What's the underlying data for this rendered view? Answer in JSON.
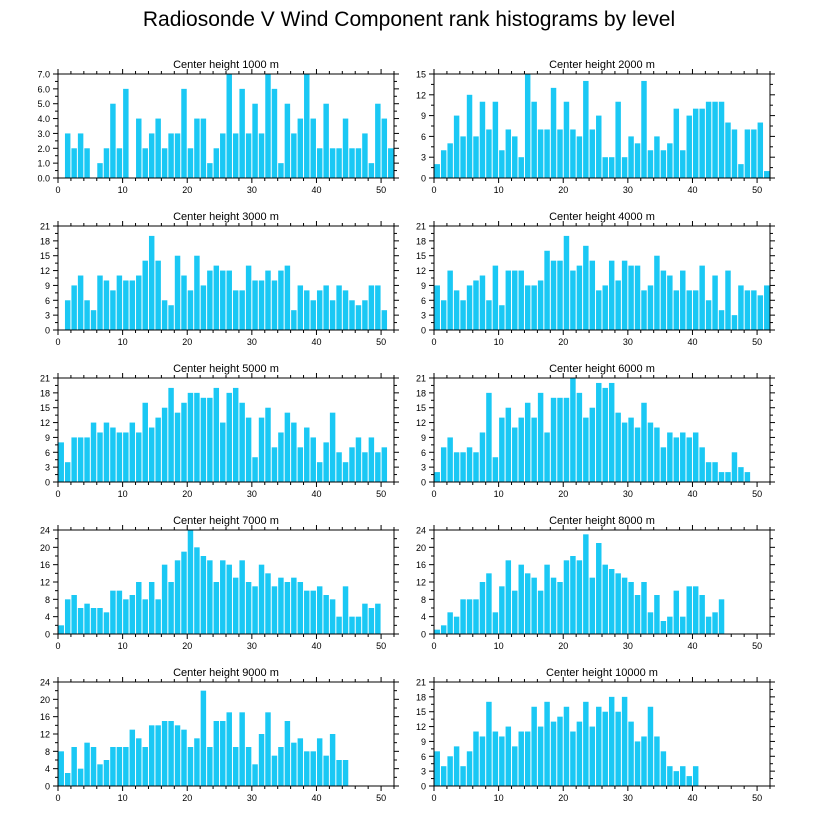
{
  "figure_title": "Radiosonde V Wind Component rank histograms by level",
  "colors": {
    "bar": "#1ac8f4",
    "bar_edge": "#ffffff",
    "axis": "#000000",
    "background": "#ffffff"
  },
  "chart_data": [
    {
      "type": "bar",
      "title": "Center height 1000 m",
      "categories": [
        0,
        1,
        2,
        3,
        4,
        5,
        6,
        7,
        8,
        9,
        10,
        11,
        12,
        13,
        14,
        15,
        16,
        17,
        18,
        19,
        20,
        21,
        22,
        23,
        24,
        25,
        26,
        27,
        28,
        29,
        30,
        31,
        32,
        33,
        34,
        35,
        36,
        37,
        38,
        39,
        40,
        41,
        42,
        43,
        44,
        45,
        46,
        47,
        48,
        49,
        50,
        51
      ],
      "values": [
        0,
        3,
        2,
        3,
        2,
        0,
        1,
        2,
        5,
        2,
        6,
        0,
        4,
        2,
        3,
        4,
        2,
        3,
        3,
        6,
        2,
        4,
        4,
        1,
        2,
        3,
        7,
        3,
        6,
        3,
        5,
        3,
        7,
        6,
        1,
        5,
        3,
        4,
        7,
        4,
        2,
        5,
        2,
        2,
        4,
        2,
        2,
        3,
        1,
        5,
        4,
        2
      ],
      "ylim": [
        0,
        7
      ],
      "yticks": [
        "0.0",
        "1.0",
        "2.0",
        "3.0",
        "4.0",
        "5.0",
        "6.0",
        "7.0"
      ],
      "xlim": [
        0,
        52
      ],
      "xticks": [
        "0",
        "10",
        "20",
        "30",
        "40",
        "50"
      ]
    },
    {
      "type": "bar",
      "title": "Center height 2000 m",
      "categories": [
        0,
        1,
        2,
        3,
        4,
        5,
        6,
        7,
        8,
        9,
        10,
        11,
        12,
        13,
        14,
        15,
        16,
        17,
        18,
        19,
        20,
        21,
        22,
        23,
        24,
        25,
        26,
        27,
        28,
        29,
        30,
        31,
        32,
        33,
        34,
        35,
        36,
        37,
        38,
        39,
        40,
        41,
        42,
        43,
        44,
        45,
        46,
        47,
        48,
        49,
        50,
        51
      ],
      "values": [
        2,
        4,
        5,
        9,
        6,
        12,
        6,
        11,
        7,
        11,
        4,
        7,
        6,
        3,
        15,
        11,
        7,
        7,
        13,
        7,
        11,
        7,
        6,
        14,
        7,
        9,
        3,
        3,
        11,
        3,
        6,
        5,
        14,
        4,
        6,
        4,
        5,
        10,
        4,
        9,
        10,
        10,
        11,
        11,
        11,
        8,
        7,
        2,
        7,
        7,
        8,
        1
      ],
      "ylim": [
        0,
        15
      ],
      "yticks": [
        "0",
        "3",
        "6",
        "9",
        "12",
        "15"
      ],
      "xlim": [
        0,
        52
      ],
      "xticks": [
        "0",
        "10",
        "20",
        "30",
        "40",
        "50"
      ]
    },
    {
      "type": "bar",
      "title": "Center height 3000 m",
      "categories": [
        0,
        1,
        2,
        3,
        4,
        5,
        6,
        7,
        8,
        9,
        10,
        11,
        12,
        13,
        14,
        15,
        16,
        17,
        18,
        19,
        20,
        21,
        22,
        23,
        24,
        25,
        26,
        27,
        28,
        29,
        30,
        31,
        32,
        33,
        34,
        35,
        36,
        37,
        38,
        39,
        40,
        41,
        42,
        43,
        44,
        45,
        46,
        47,
        48,
        49,
        50,
        51
      ],
      "values": [
        0,
        6,
        9,
        11,
        6,
        4,
        11,
        10,
        8,
        11,
        10,
        10,
        11,
        14,
        19,
        14,
        6,
        5,
        15,
        11,
        8,
        15,
        9,
        12,
        13,
        12,
        12,
        8,
        8,
        13,
        10,
        10,
        12,
        10,
        12,
        13,
        4,
        9,
        8,
        6,
        8,
        9,
        6,
        9,
        8,
        6,
        5,
        6,
        9,
        9,
        4,
        0
      ],
      "ylim": [
        0,
        21
      ],
      "yticks": [
        "0",
        "3",
        "6",
        "9",
        "12",
        "15",
        "18",
        "21"
      ],
      "xlim": [
        0,
        52
      ],
      "xticks": [
        "0",
        "10",
        "20",
        "30",
        "40",
        "50"
      ]
    },
    {
      "type": "bar",
      "title": "Center height 4000 m",
      "categories": [
        0,
        1,
        2,
        3,
        4,
        5,
        6,
        7,
        8,
        9,
        10,
        11,
        12,
        13,
        14,
        15,
        16,
        17,
        18,
        19,
        20,
        21,
        22,
        23,
        24,
        25,
        26,
        27,
        28,
        29,
        30,
        31,
        32,
        33,
        34,
        35,
        36,
        37,
        38,
        39,
        40,
        41,
        42,
        43,
        44,
        45,
        46,
        47,
        48,
        49,
        50,
        51
      ],
      "values": [
        9,
        6,
        12,
        8,
        6,
        9,
        10,
        11,
        6,
        13,
        5,
        12,
        12,
        12,
        9,
        9,
        10,
        16,
        14,
        14,
        19,
        12,
        13,
        17,
        14,
        8,
        9,
        14,
        10,
        14,
        13,
        13,
        8,
        9,
        15,
        12,
        11,
        8,
        12,
        8,
        8,
        13,
        6,
        11,
        4,
        12,
        3,
        9,
        8,
        8,
        7,
        9
      ],
      "ylim": [
        0,
        21
      ],
      "yticks": [
        "0",
        "3",
        "6",
        "9",
        "12",
        "15",
        "18",
        "21"
      ],
      "xlim": [
        0,
        52
      ],
      "xticks": [
        "0",
        "10",
        "20",
        "30",
        "40",
        "50"
      ]
    },
    {
      "type": "bar",
      "title": "Center height 5000 m",
      "categories": [
        0,
        1,
        2,
        3,
        4,
        5,
        6,
        7,
        8,
        9,
        10,
        11,
        12,
        13,
        14,
        15,
        16,
        17,
        18,
        19,
        20,
        21,
        22,
        23,
        24,
        25,
        26,
        27,
        28,
        29,
        30,
        31,
        32,
        33,
        34,
        35,
        36,
        37,
        38,
        39,
        40,
        41,
        42,
        43,
        44,
        45,
        46,
        47,
        48,
        49,
        50,
        51
      ],
      "values": [
        8,
        4,
        9,
        9,
        9,
        12,
        10,
        12,
        11,
        10,
        10,
        12,
        10,
        16,
        11,
        13,
        15,
        19,
        14,
        16,
        18,
        18,
        17,
        17,
        19,
        12,
        18,
        19,
        16,
        13,
        5,
        13,
        15,
        7,
        10,
        14,
        12,
        7,
        11,
        9,
        4,
        8,
        14,
        6,
        4,
        7,
        9,
        6,
        9,
        6,
        7,
        0
      ],
      "ylim": [
        0,
        21
      ],
      "yticks": [
        "0",
        "3",
        "6",
        "9",
        "12",
        "15",
        "18",
        "21"
      ],
      "xlim": [
        0,
        52
      ],
      "xticks": [
        "0",
        "10",
        "20",
        "30",
        "40",
        "50"
      ]
    },
    {
      "type": "bar",
      "title": "Center height 6000 m",
      "categories": [
        0,
        1,
        2,
        3,
        4,
        5,
        6,
        7,
        8,
        9,
        10,
        11,
        12,
        13,
        14,
        15,
        16,
        17,
        18,
        19,
        20,
        21,
        22,
        23,
        24,
        25,
        26,
        27,
        28,
        29,
        30,
        31,
        32,
        33,
        34,
        35,
        36,
        37,
        38,
        39,
        40,
        41,
        42,
        43,
        44,
        45,
        46,
        47,
        48,
        49,
        50,
        51
      ],
      "values": [
        2,
        7,
        9,
        6,
        6,
        7,
        6,
        10,
        18,
        5,
        13,
        15,
        11,
        13,
        16,
        13,
        18,
        10,
        17,
        17,
        17,
        21,
        18,
        13,
        15,
        20,
        19,
        20,
        14,
        12,
        13,
        11,
        16,
        12,
        11,
        7,
        10,
        9,
        10,
        9,
        10,
        7,
        4,
        4,
        2,
        2,
        6,
        3,
        2,
        0,
        0,
        0
      ],
      "ylim": [
        0,
        21
      ],
      "yticks": [
        "0",
        "3",
        "6",
        "9",
        "12",
        "15",
        "18",
        "21"
      ],
      "xlim": [
        0,
        52
      ],
      "xticks": [
        "0",
        "10",
        "20",
        "30",
        "40",
        "50"
      ]
    },
    {
      "type": "bar",
      "title": "Center height 7000 m",
      "categories": [
        0,
        1,
        2,
        3,
        4,
        5,
        6,
        7,
        8,
        9,
        10,
        11,
        12,
        13,
        14,
        15,
        16,
        17,
        18,
        19,
        20,
        21,
        22,
        23,
        24,
        25,
        26,
        27,
        28,
        29,
        30,
        31,
        32,
        33,
        34,
        35,
        36,
        37,
        38,
        39,
        40,
        41,
        42,
        43,
        44,
        45,
        46,
        47,
        48,
        49,
        50,
        51
      ],
      "values": [
        2,
        8,
        9,
        6,
        7,
        6,
        6,
        5,
        10,
        10,
        8,
        9,
        12,
        8,
        12,
        8,
        16,
        12,
        17,
        19,
        24,
        20,
        18,
        17,
        12,
        17,
        16,
        13,
        17,
        12,
        11,
        16,
        14,
        11,
        13,
        12,
        13,
        12,
        10,
        10,
        11,
        9,
        8,
        4,
        11,
        4,
        4,
        7,
        6,
        7,
        0,
        0
      ],
      "ylim": [
        0,
        24
      ],
      "yticks": [
        "0",
        "4",
        "8",
        "12",
        "16",
        "20",
        "24"
      ],
      "xlim": [
        0,
        52
      ],
      "xticks": [
        "0",
        "10",
        "20",
        "30",
        "40",
        "50"
      ]
    },
    {
      "type": "bar",
      "title": "Center height 8000 m",
      "categories": [
        0,
        1,
        2,
        3,
        4,
        5,
        6,
        7,
        8,
        9,
        10,
        11,
        12,
        13,
        14,
        15,
        16,
        17,
        18,
        19,
        20,
        21,
        22,
        23,
        24,
        25,
        26,
        27,
        28,
        29,
        30,
        31,
        32,
        33,
        34,
        35,
        36,
        37,
        38,
        39,
        40,
        41,
        42,
        43,
        44,
        45,
        46,
        47,
        48,
        49,
        50,
        51
      ],
      "values": [
        1,
        2,
        5,
        4,
        8,
        8,
        8,
        12,
        14,
        5,
        11,
        17,
        10,
        16,
        14,
        13,
        10,
        16,
        13,
        12,
        17,
        18,
        17,
        23,
        13,
        21,
        16,
        15,
        14,
        13,
        12,
        9,
        12,
        5,
        9,
        3,
        4,
        10,
        4,
        11,
        11,
        9,
        4,
        5,
        8,
        0,
        0,
        0,
        0,
        0,
        0,
        0
      ],
      "ylim": [
        0,
        24
      ],
      "yticks": [
        "0",
        "4",
        "8",
        "12",
        "16",
        "20",
        "24"
      ],
      "xlim": [
        0,
        52
      ],
      "xticks": [
        "0",
        "10",
        "20",
        "30",
        "40",
        "50"
      ]
    },
    {
      "type": "bar",
      "title": "Center height 9000 m",
      "categories": [
        0,
        1,
        2,
        3,
        4,
        5,
        6,
        7,
        8,
        9,
        10,
        11,
        12,
        13,
        14,
        15,
        16,
        17,
        18,
        19,
        20,
        21,
        22,
        23,
        24,
        25,
        26,
        27,
        28,
        29,
        30,
        31,
        32,
        33,
        34,
        35,
        36,
        37,
        38,
        39,
        40,
        41,
        42,
        43,
        44,
        45,
        46,
        47,
        48,
        49,
        50,
        51
      ],
      "values": [
        8,
        3,
        9,
        4,
        10,
        9,
        5,
        6,
        9,
        9,
        9,
        13,
        11,
        9,
        14,
        14,
        15,
        15,
        14,
        13,
        9,
        11,
        22,
        9,
        15,
        15,
        17,
        9,
        17,
        9,
        5,
        12,
        17,
        7,
        9,
        15,
        10,
        11,
        8,
        8,
        11,
        7,
        12,
        6,
        6,
        0,
        0,
        0,
        0,
        0,
        0,
        0
      ],
      "ylim": [
        0,
        24
      ],
      "yticks": [
        "0",
        "4",
        "8",
        "12",
        "16",
        "20",
        "24"
      ],
      "xlim": [
        0,
        52
      ],
      "xticks": [
        "0",
        "10",
        "20",
        "30",
        "40",
        "50"
      ]
    },
    {
      "type": "bar",
      "title": "Center height 10000 m",
      "categories": [
        0,
        1,
        2,
        3,
        4,
        5,
        6,
        7,
        8,
        9,
        10,
        11,
        12,
        13,
        14,
        15,
        16,
        17,
        18,
        19,
        20,
        21,
        22,
        23,
        24,
        25,
        26,
        27,
        28,
        29,
        30,
        31,
        32,
        33,
        34,
        35,
        36,
        37,
        38,
        39,
        40,
        41,
        42,
        43,
        44,
        45,
        46,
        47,
        48,
        49,
        50,
        51
      ],
      "values": [
        7,
        4,
        6,
        8,
        4,
        7,
        11,
        10,
        17,
        11,
        10,
        12,
        8,
        11,
        11,
        16,
        12,
        17,
        13,
        14,
        16,
        11,
        13,
        17,
        12,
        16,
        15,
        18,
        15,
        18,
        13,
        9,
        10,
        16,
        10,
        7,
        4,
        3,
        4,
        2,
        4,
        0,
        0,
        0,
        0,
        0,
        0,
        0,
        0,
        0,
        0,
        0
      ],
      "ylim": [
        0,
        21
      ],
      "yticks": [
        "0",
        "3",
        "6",
        "9",
        "12",
        "15",
        "18",
        "21"
      ],
      "xlim": [
        0,
        52
      ],
      "xticks": [
        "0",
        "10",
        "20",
        "30",
        "40",
        "50"
      ]
    }
  ]
}
